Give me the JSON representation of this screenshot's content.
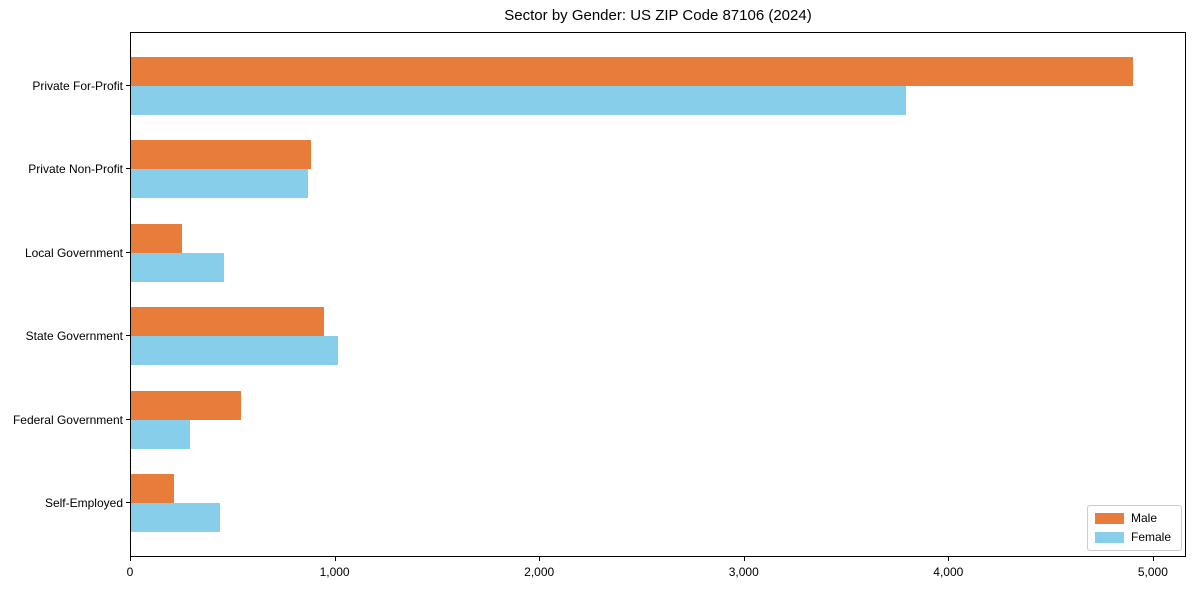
{
  "chart_data": {
    "type": "bar",
    "orientation": "horizontal",
    "title": "Sector by Gender: US ZIP Code 87106 (2024)",
    "categories": [
      "Private For-Profit",
      "Private Non-Profit",
      "Local Government",
      "State Government",
      "Federal Government",
      "Self-Employed"
    ],
    "series": [
      {
        "name": "Male",
        "color": "#e87d3b",
        "values": [
          4900,
          880,
          250,
          945,
          540,
          210
        ]
      },
      {
        "name": "Female",
        "color": "#87ceeb",
        "values": [
          3790,
          865,
          455,
          1010,
          290,
          435
        ]
      }
    ],
    "xlabel": "",
    "ylabel": "",
    "xlim": [
      0,
      5152
    ],
    "xticks": [
      0,
      1000,
      2000,
      3000,
      4000,
      5000
    ],
    "xtick_labels": [
      "0",
      "1,000",
      "2,000",
      "3,000",
      "4,000",
      "5,000"
    ],
    "grid": false,
    "legend": {
      "position": "lower right",
      "entries": [
        "Male",
        "Female"
      ]
    },
    "colors": {
      "male": "#e87d3b",
      "female": "#87ceeb",
      "spine": "#000000",
      "legend_border": "#cccccc",
      "background": "#ffffff"
    }
  }
}
